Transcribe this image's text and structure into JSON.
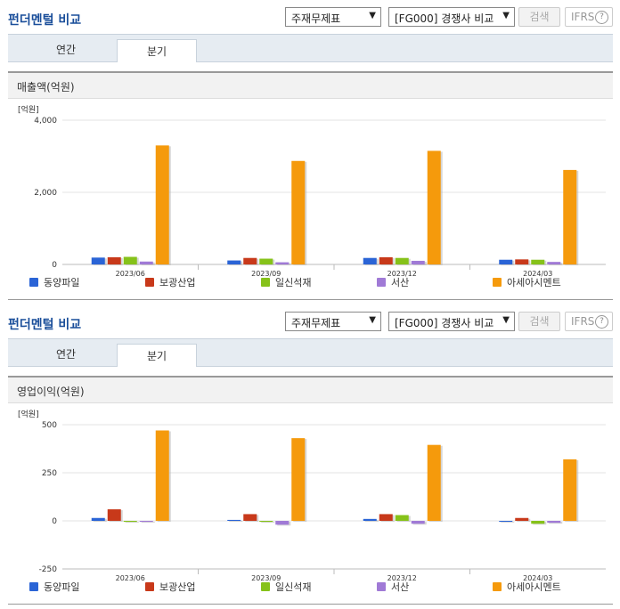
{
  "panels": [
    {
      "title": "펀더멘털 비교",
      "statement_select": "주재무제표",
      "peer_select": "[FG000] 경쟁사 비교",
      "search_label": "검색",
      "ifrs_label": "IFRS",
      "help_label": "?",
      "tabs": [
        "연간",
        "분기"
      ],
      "active_tab": "분기",
      "section_title": "매출액(억원)"
    },
    {
      "title": "펀더멘털 비교",
      "statement_select": "주재무제표",
      "peer_select": "[FG000] 경쟁사 비교",
      "search_label": "검색",
      "ifrs_label": "IFRS",
      "help_label": "?",
      "tabs": [
        "연간",
        "분기"
      ],
      "active_tab": "분기",
      "section_title": "영업이익(억원)"
    }
  ],
  "colors": {
    "동양파일": "#2a64d6",
    "보광산업": "#c8391a",
    "일신석재": "#86c21a",
    "서산": "#a07ad6",
    "아세아시멘트": "#f59a0c"
  },
  "chart_data": [
    {
      "type": "bar",
      "unit_label": "[억원]",
      "categories": [
        "2023/06",
        "2023/09",
        "2023/12",
        "2024/03"
      ],
      "series": [
        {
          "name": "동양파일",
          "values": [
            190,
            110,
            180,
            130
          ]
        },
        {
          "name": "보광산업",
          "values": [
            200,
            180,
            200,
            140
          ]
        },
        {
          "name": "일신석재",
          "values": [
            210,
            160,
            180,
            130
          ]
        },
        {
          "name": "서산",
          "values": [
            80,
            60,
            100,
            70
          ]
        },
        {
          "name": "아세아시멘트",
          "values": [
            3300,
            2870,
            3150,
            2620
          ]
        }
      ],
      "ylim": [
        0,
        4000
      ],
      "yticks": [
        0,
        2000,
        4000
      ],
      "ytick_labels": [
        "0",
        "2,000",
        "4,000"
      ],
      "grid": true,
      "legend": "bottom"
    },
    {
      "type": "bar",
      "unit_label": "[억원]",
      "categories": [
        "2023/06",
        "2023/09",
        "2023/12",
        "2024/03"
      ],
      "series": [
        {
          "name": "동양파일",
          "values": [
            15,
            5,
            10,
            -2
          ]
        },
        {
          "name": "보광산업",
          "values": [
            60,
            35,
            35,
            15
          ]
        },
        {
          "name": "일신석재",
          "values": [
            -5,
            -5,
            30,
            -15
          ]
        },
        {
          "name": "서산",
          "values": [
            -5,
            -20,
            -15,
            -10
          ]
        },
        {
          "name": "아세아시멘트",
          "values": [
            470,
            430,
            395,
            320
          ]
        }
      ],
      "ylim": [
        -250,
        500
      ],
      "yticks": [
        -250,
        0,
        250,
        500
      ],
      "ytick_labels": [
        "-250",
        "0",
        "250",
        "500"
      ],
      "grid": true,
      "legend": "bottom"
    }
  ]
}
